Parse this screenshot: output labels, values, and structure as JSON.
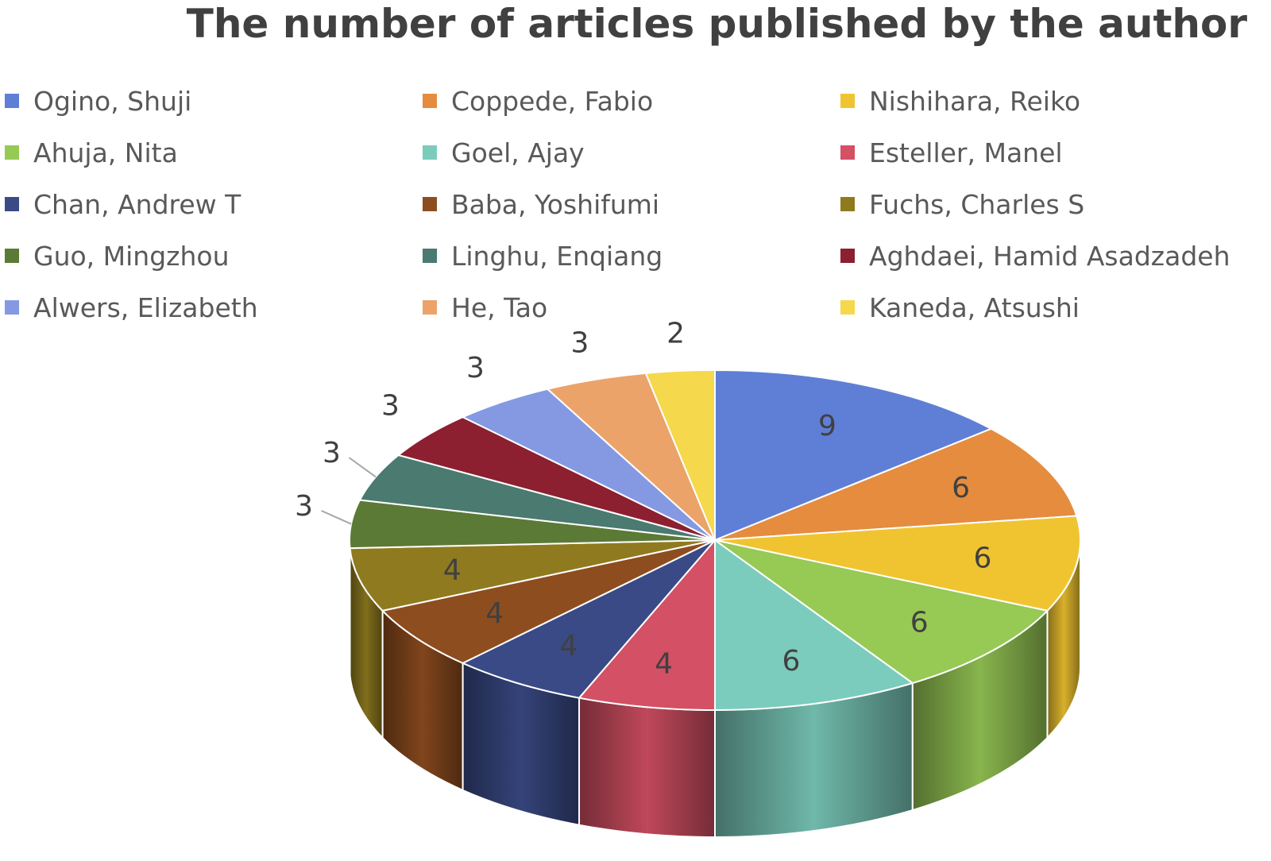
{
  "chart_data": {
    "type": "pie",
    "title": "The number of articles published by the author",
    "legend_position": "top",
    "categories": [
      "Ogino, Shuji",
      "Coppede, Fabio",
      "Nishihara, Reiko",
      "Ahuja, Nita",
      "Goel, Ajay",
      "Esteller, Manel",
      "Chan, Andrew T",
      "Baba, Yoshifumi",
      "Fuchs, Charles S",
      "Guo, Mingzhou",
      "Linghu, Enqiang",
      "Aghdaei, Hamid Asadzadeh",
      "Alwers, Elizabeth",
      "He, Tao",
      "Kaneda, Atsushi"
    ],
    "values": [
      9,
      6,
      6,
      6,
      6,
      4,
      4,
      4,
      4,
      3,
      3,
      3,
      3,
      3,
      2
    ],
    "colors": [
      "#5f7fd6",
      "#e58c3f",
      "#f0c431",
      "#97c955",
      "#7bccbd",
      "#d45064",
      "#3a4a86",
      "#8e4d1f",
      "#8f7a1f",
      "#5b7a35",
      "#4a7a70",
      "#8c1f30",
      "#8499e2",
      "#eba36a",
      "#f5d84b"
    ]
  }
}
